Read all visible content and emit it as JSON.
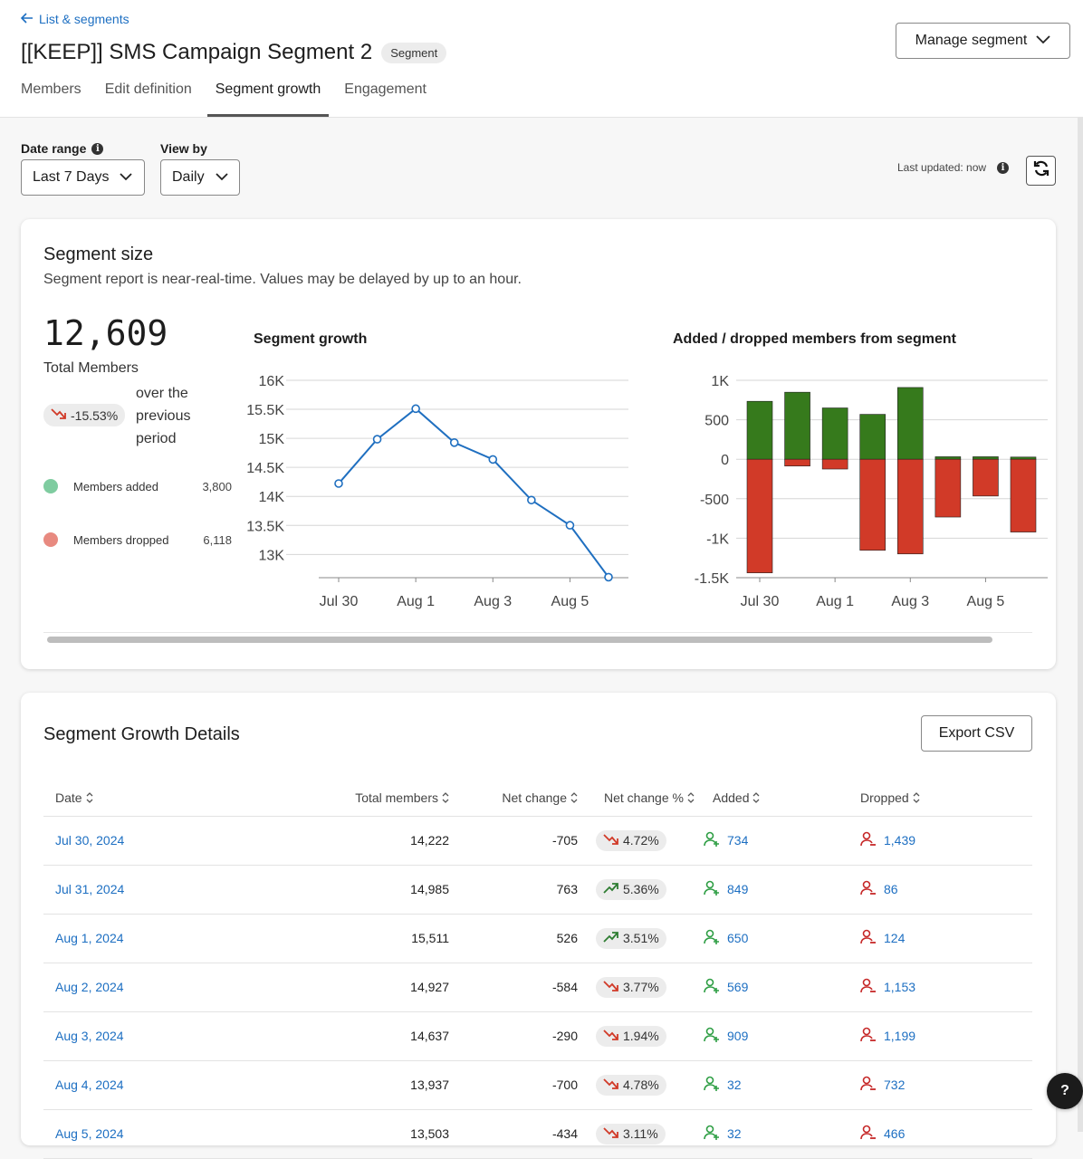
{
  "header": {
    "back_label": "List & segments",
    "title": "[[KEEP]] SMS Campaign Segment 2",
    "badge": "Segment",
    "manage_label": "Manage segment",
    "tabs": [
      {
        "label": "Members"
      },
      {
        "label": "Edit definition"
      },
      {
        "label": "Segment growth",
        "active": true
      },
      {
        "label": "Engagement"
      }
    ]
  },
  "filters": {
    "date_range_label": "Date range",
    "date_range_value": "Last 7 Days",
    "view_by_label": "View by",
    "view_by_value": "Daily",
    "last_updated": "Last updated: now"
  },
  "segment_size": {
    "title": "Segment size",
    "subtitle": "Segment report is near-real-time. Values may be delayed by up to an hour.",
    "total": "12,609",
    "total_label": "Total Members",
    "change": "-15.53%",
    "change_text": "over the previous period",
    "added_label": "Members added",
    "added_value": "3,800",
    "dropped_label": "Members dropped",
    "dropped_value": "6,118",
    "added_color": "#7fcca0",
    "dropped_color": "#e88a80"
  },
  "chart_data": [
    {
      "type": "line",
      "title": "Segment growth",
      "x": [
        "Jul 30",
        "Jul 31",
        "Aug 1",
        "Aug 2",
        "Aug 3",
        "Aug 4",
        "Aug 5",
        "Aug 6"
      ],
      "x_tick_labels": [
        "Jul 30",
        "Aug 1",
        "Aug 3",
        "Aug 5"
      ],
      "values": [
        14222,
        14985,
        15511,
        14927,
        14637,
        13937,
        13503,
        12609
      ],
      "y_ticks": [
        13000,
        13500,
        14000,
        14500,
        15000,
        15500,
        16000
      ],
      "y_tick_labels": [
        "13K",
        "13.5K",
        "14K",
        "14.5K",
        "15K",
        "15.5K",
        "16K"
      ],
      "ylim": [
        12600,
        16000
      ],
      "color": "#1f6fc0"
    },
    {
      "type": "bar",
      "title": "Added / dropped members from segment",
      "categories": [
        "Jul 30",
        "Jul 31",
        "Aug 1",
        "Aug 2",
        "Aug 3",
        "Aug 4",
        "Aug 5",
        "Aug 6"
      ],
      "x_tick_labels": [
        "Jul 30",
        "Aug 1",
        "Aug 3",
        "Aug 5"
      ],
      "series": [
        {
          "name": "Added",
          "values": [
            734,
            849,
            650,
            569,
            909,
            32,
            32,
            28
          ],
          "color": "#367a1c"
        },
        {
          "name": "Dropped",
          "values": [
            -1439,
            -86,
            -124,
            -1153,
            -1199,
            -732,
            -466,
            -922
          ],
          "color": "#d13a28"
        }
      ],
      "y_ticks": [
        -1500,
        -1000,
        -500,
        0,
        500,
        1000
      ],
      "y_tick_labels": [
        "-1.5K",
        "-1K",
        "-500",
        "0",
        "500",
        "1K"
      ],
      "ylim": [
        -1500,
        1000
      ]
    }
  ],
  "details": {
    "title": "Segment Growth Details",
    "export_label": "Export CSV",
    "columns": [
      "Date",
      "Total members",
      "Net change",
      "Net change %",
      "Added",
      "Dropped"
    ],
    "rows": [
      {
        "date": "Jul 30, 2024",
        "total": "14,222",
        "net": "-705",
        "pct": "4.72%",
        "dir": "down",
        "added": "734",
        "dropped": "1,439"
      },
      {
        "date": "Jul 31, 2024",
        "total": "14,985",
        "net": "763",
        "pct": "5.36%",
        "dir": "up",
        "added": "849",
        "dropped": "86"
      },
      {
        "date": "Aug 1, 2024",
        "total": "15,511",
        "net": "526",
        "pct": "3.51%",
        "dir": "up",
        "added": "650",
        "dropped": "124"
      },
      {
        "date": "Aug 2, 2024",
        "total": "14,927",
        "net": "-584",
        "pct": "3.77%",
        "dir": "down",
        "added": "569",
        "dropped": "1,153"
      },
      {
        "date": "Aug 3, 2024",
        "total": "14,637",
        "net": "-290",
        "pct": "1.94%",
        "dir": "down",
        "added": "909",
        "dropped": "1,199"
      },
      {
        "date": "Aug 4, 2024",
        "total": "13,937",
        "net": "-700",
        "pct": "4.78%",
        "dir": "down",
        "added": "32",
        "dropped": "732"
      },
      {
        "date": "Aug 5, 2024",
        "total": "13,503",
        "net": "-434",
        "pct": "3.11%",
        "dir": "down",
        "added": "32",
        "dropped": "466"
      }
    ]
  },
  "help_label": "?"
}
